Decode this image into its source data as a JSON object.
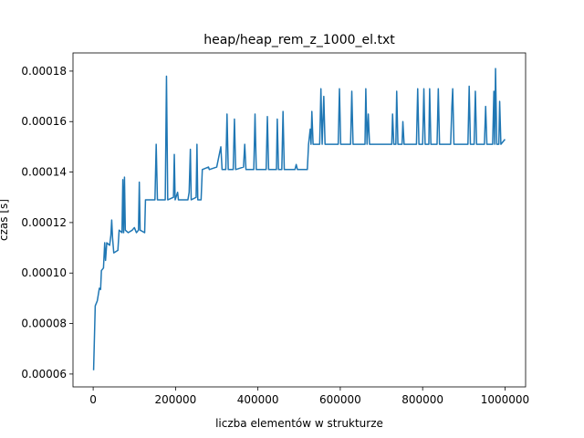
{
  "chart_data": {
    "type": "line",
    "title": "heap/heap_rem_z_1000_el.txt",
    "x_label": "liczba elementów w strukturze",
    "y_label": "czas [s]",
    "xlim": [
      -49000,
      1050000
    ],
    "ylim": [
      5.49e-05,
      0.0001872
    ],
    "xticks": [
      0,
      200000,
      400000,
      600000,
      800000,
      1000000
    ],
    "yticks": [
      6e-05,
      8e-05,
      {
        "value": 0.0001,
        "label": "0.00010"
      },
      0.00012,
      0.00014,
      0.00016,
      0.00018
    ],
    "color": "#1f77b4",
    "x": [
      1000,
      5000,
      10000,
      15000,
      18000,
      20000,
      25000,
      28000,
      30000,
      33000,
      40000,
      43000,
      45000,
      47000,
      50000,
      60000,
      63000,
      70000,
      72000,
      74000,
      76000,
      78000,
      85000,
      95000,
      100000,
      105000,
      110000,
      112000,
      114000,
      125000,
      127000,
      150000,
      153000,
      156000,
      175000,
      178000,
      181000,
      195000,
      197000,
      199000,
      205000,
      207000,
      230000,
      233000,
      236000,
      238000,
      250000,
      252000,
      254000,
      262000,
      265000,
      280000,
      282000,
      300000,
      310000,
      313000,
      322000,
      325000,
      328000,
      340000,
      343000,
      346000,
      365000,
      368000,
      371000,
      390000,
      393000,
      396000,
      420000,
      423000,
      426000,
      445000,
      447000,
      450000,
      458000,
      461000,
      464000,
      490000,
      493000,
      496000,
      520000,
      523000,
      527000,
      529000,
      531000,
      534000,
      550000,
      553000,
      556000,
      560000,
      563000,
      595000,
      598000,
      601000,
      625000,
      628000,
      631000,
      660000,
      662000,
      665000,
      668000,
      671000,
      725000,
      727000,
      730000,
      735000,
      737000,
      740000,
      750000,
      752000,
      755000,
      785000,
      788000,
      791000,
      800000,
      803000,
      806000,
      815000,
      817000,
      820000,
      835000,
      838000,
      841000,
      868000,
      871000,
      873000,
      876000,
      910000,
      913000,
      916000,
      925000,
      928000,
      931000,
      950000,
      953000,
      956000,
      970000,
      973000,
      975000,
      977000,
      980000,
      985000,
      987000,
      990000,
      1000000
    ],
    "values": [
      6.15e-05,
      8.7e-05,
      8.9e-05,
      9.4e-05,
      9.35e-05,
      0.000101,
      0.000102,
      0.000112,
      0.000105,
      0.000112,
      0.000111,
      0.000115,
      0.000121,
      0.000114,
      0.000108,
      0.000109,
      0.000117,
      0.000116,
      0.000137,
      0.000116,
      0.000138,
      0.000117,
      0.000116,
      0.000117,
      0.000118,
      0.000116,
      0.000117,
      0.000136,
      0.000117,
      0.000116,
      0.000129,
      0.000129,
      0.000151,
      0.000129,
      0.000129,
      0.000178,
      0.000129,
      0.00013,
      0.000147,
      0.000129,
      0.000132,
      0.000129,
      0.000129,
      0.000132,
      0.000149,
      0.000129,
      0.00013,
      0.000151,
      0.000129,
      0.000129,
      0.000141,
      0.000142,
      0.000141,
      0.000142,
      0.00015,
      0.000141,
      0.000141,
      0.000163,
      0.000141,
      0.000141,
      0.000161,
      0.000141,
      0.000142,
      0.000151,
      0.000141,
      0.000141,
      0.000163,
      0.000141,
      0.000141,
      0.000162,
      0.000141,
      0.000141,
      0.000161,
      0.000141,
      0.000141,
      0.000164,
      0.000141,
      0.000141,
      0.000143,
      0.000141,
      0.000141,
      0.000151,
      0.000157,
      0.000151,
      0.000164,
      0.000151,
      0.000151,
      0.000173,
      0.000151,
      0.00017,
      0.000151,
      0.000151,
      0.000173,
      0.000151,
      0.000151,
      0.000172,
      0.000151,
      0.000151,
      0.000173,
      0.000151,
      0.000163,
      0.000151,
      0.000151,
      0.000163,
      0.000151,
      0.000151,
      0.000172,
      0.000151,
      0.000151,
      0.00016,
      0.000151,
      0.000151,
      0.000173,
      0.000151,
      0.000151,
      0.000173,
      0.000151,
      0.000151,
      0.000173,
      0.000151,
      0.000151,
      0.000173,
      0.000151,
      0.000151,
      0.000166,
      0.000173,
      0.000151,
      0.000151,
      0.000174,
      0.000151,
      0.000151,
      0.000172,
      0.000151,
      0.000151,
      0.000166,
      0.000151,
      0.000151,
      0.000172,
      0.000151,
      0.000181,
      0.000151,
      0.000151,
      0.000168,
      0.000151,
      0.000153
    ]
  }
}
